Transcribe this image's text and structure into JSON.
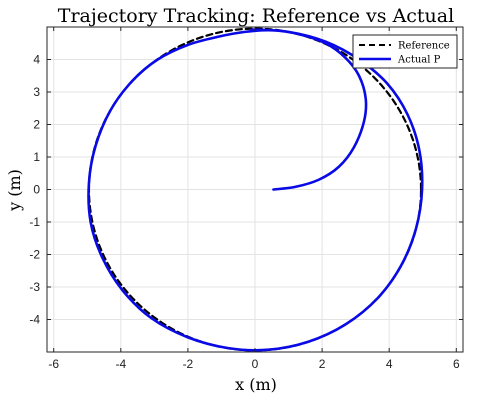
{
  "chart_data": {
    "type": "line",
    "title": "Trajectory Tracking: Reference vs Actual",
    "xlabel": "x (m)",
    "ylabel": "y (m)",
    "xlim": [
      -6.2,
      6.2
    ],
    "ylim": [
      -5.0,
      5.0
    ],
    "xticks": [
      -6,
      -4,
      -2,
      0,
      2,
      4,
      6
    ],
    "yticks": [
      -4,
      -3,
      -2,
      -1,
      0,
      1,
      2,
      3,
      4
    ],
    "grid": true,
    "legend_position": "top-right",
    "series": [
      {
        "name": "Reference",
        "style": "dashed",
        "color": "#000000",
        "shape": "circle",
        "center": [
          0,
          0
        ],
        "radius": 4.95
      },
      {
        "name": "Actual P",
        "style": "solid",
        "color": "#0a0ae6",
        "points": [
          [
            0.55,
            0.0
          ],
          [
            1.2,
            0.08
          ],
          [
            1.9,
            0.3
          ],
          [
            2.5,
            0.7
          ],
          [
            2.95,
            1.3
          ],
          [
            3.25,
            2.1
          ],
          [
            3.3,
            2.8
          ],
          [
            3.1,
            3.5
          ],
          [
            2.7,
            4.05
          ],
          [
            2.1,
            4.5
          ],
          [
            1.3,
            4.78
          ],
          [
            0.5,
            4.9
          ],
          [
            -0.3,
            4.85
          ],
          [
            -1.1,
            4.7
          ],
          [
            -2.0,
            4.45
          ],
          [
            -2.9,
            4.0
          ],
          [
            -3.65,
            3.35
          ],
          [
            -4.3,
            2.45
          ],
          [
            -4.75,
            1.35
          ],
          [
            -4.95,
            0.2
          ],
          [
            -4.9,
            -1.0
          ],
          [
            -4.55,
            -2.1
          ],
          [
            -3.95,
            -3.1
          ],
          [
            -3.1,
            -3.95
          ],
          [
            -2.0,
            -4.55
          ],
          [
            -0.8,
            -4.88
          ],
          [
            0.4,
            -4.93
          ],
          [
            1.6,
            -4.68
          ],
          [
            2.7,
            -4.15
          ],
          [
            3.65,
            -3.35
          ],
          [
            4.35,
            -2.35
          ],
          [
            4.8,
            -1.2
          ],
          [
            4.98,
            0.0
          ],
          [
            4.9,
            1.2
          ],
          [
            4.55,
            2.3
          ],
          [
            3.95,
            3.25
          ],
          [
            3.1,
            4.0
          ],
          [
            2.1,
            4.55
          ],
          [
            1.0,
            4.85
          ],
          [
            -0.1,
            4.92
          ]
        ]
      }
    ]
  }
}
